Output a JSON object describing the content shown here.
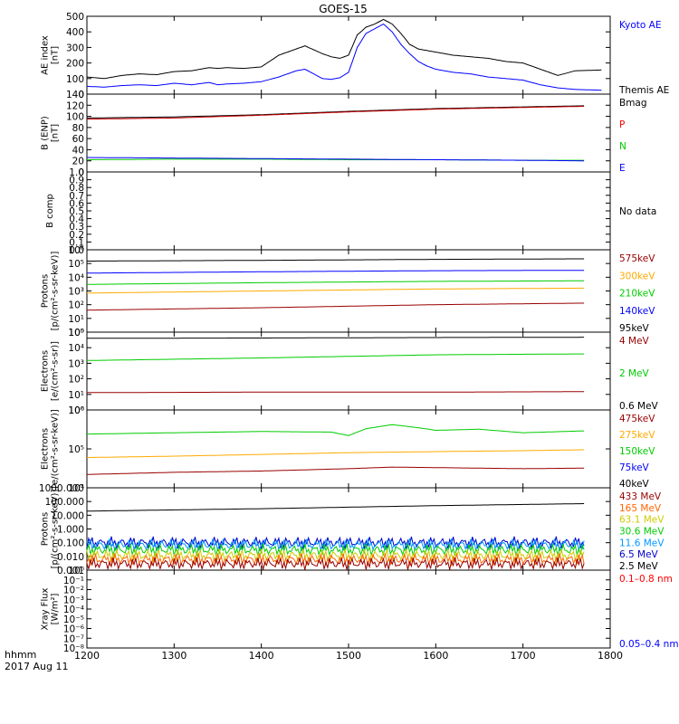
{
  "title": "GOES-15",
  "footer": {
    "time_label": "hhmm",
    "date_label": "2017 Aug 11"
  },
  "x_axis": {
    "range": [
      1200,
      1800
    ],
    "ticks": [
      "1200",
      "1300",
      "1400",
      "1500",
      "1600",
      "1700",
      "1800"
    ]
  },
  "chart_data": [
    {
      "type": "line",
      "panel": "ae",
      "ylabel": [
        "AE index",
        "[nT]"
      ],
      "ylim": [
        0,
        500
      ],
      "yticks": [
        "0",
        "100",
        "200",
        "300",
        "400",
        "500"
      ],
      "series": [
        {
          "name": "Kyoto AE",
          "color": "#0000ff",
          "x": [
            1200,
            1220,
            1240,
            1260,
            1280,
            1300,
            1320,
            1340,
            1350,
            1360,
            1380,
            1400,
            1420,
            1440,
            1450,
            1460,
            1470,
            1480,
            1490,
            1500,
            1510,
            1520,
            1530,
            1540,
            1550,
            1560,
            1570,
            1580,
            1590,
            1600,
            1620,
            1640,
            1660,
            1680,
            1700,
            1720,
            1740,
            1760,
            1790
          ],
          "y": [
            50,
            45,
            55,
            60,
            55,
            70,
            60,
            75,
            60,
            65,
            70,
            80,
            110,
            150,
            160,
            130,
            100,
            95,
            105,
            140,
            300,
            390,
            420,
            450,
            400,
            320,
            260,
            210,
            180,
            160,
            140,
            130,
            110,
            100,
            90,
            60,
            40,
            30,
            25
          ]
        },
        {
          "name": "Themis AE",
          "color": "#000000",
          "x": [
            1200,
            1220,
            1240,
            1260,
            1280,
            1300,
            1320,
            1340,
            1350,
            1360,
            1380,
            1400,
            1420,
            1440,
            1450,
            1460,
            1470,
            1480,
            1490,
            1500,
            1510,
            1520,
            1530,
            1540,
            1550,
            1560,
            1570,
            1580,
            1590,
            1600,
            1620,
            1640,
            1660,
            1680,
            1700,
            1720,
            1740,
            1760,
            1790
          ],
          "y": [
            110,
            100,
            120,
            130,
            125,
            145,
            150,
            170,
            165,
            170,
            165,
            175,
            250,
            290,
            310,
            285,
            260,
            240,
            230,
            250,
            380,
            430,
            450,
            480,
            450,
            390,
            320,
            290,
            280,
            270,
            250,
            240,
            230,
            210,
            200,
            160,
            120,
            150,
            155
          ]
        }
      ],
      "legend": [
        {
          "text": "Kyoto AE",
          "color": "#0000ff"
        },
        {
          "text": "Themis AE",
          "color": "#000000"
        }
      ]
    },
    {
      "type": "line",
      "panel": "bfield",
      "ylabel": [
        "B (ENP)",
        "[nT]"
      ],
      "ylim": [
        0,
        140
      ],
      "yticks": [
        "0",
        "20",
        "40",
        "60",
        "80",
        "100",
        "120",
        "140"
      ],
      "series": [
        {
          "name": "Bmag",
          "color": "#000000",
          "x": [
            1200,
            1300,
            1400,
            1500,
            1600,
            1700,
            1770
          ],
          "y": [
            97,
            99,
            103,
            109,
            114,
            117,
            119
          ]
        },
        {
          "name": "P",
          "color": "#cc0000",
          "x": [
            1200,
            1300,
            1400,
            1500,
            1600,
            1700,
            1770
          ],
          "y": [
            95,
            97,
            102,
            108,
            113,
            116,
            118
          ]
        },
        {
          "name": "N",
          "color": "#00cc00",
          "x": [
            1200,
            1300,
            1400,
            1500,
            1600,
            1700,
            1770
          ],
          "y": [
            22,
            23,
            23,
            22,
            22,
            21,
            21
          ]
        },
        {
          "name": "E",
          "color": "#0000ff",
          "x": [
            1200,
            1300,
            1400,
            1500,
            1600,
            1700,
            1770
          ],
          "y": [
            26,
            25,
            24,
            23,
            22,
            21,
            20
          ]
        }
      ],
      "legend": [
        {
          "text": "Bmag",
          "color": "#000000"
        },
        {
          "text": "P",
          "color": "#ff0000"
        },
        {
          "text": "N",
          "color": "#00cc00"
        },
        {
          "text": "E",
          "color": "#0000ff"
        }
      ]
    },
    {
      "type": "line",
      "panel": "bcomp",
      "ylabel": [
        "B comp"
      ],
      "ylim": [
        0,
        1
      ],
      "yticks": [
        "0.0",
        "0.1",
        "0.2",
        "0.3",
        "0.4",
        "0.5",
        "0.6",
        "0.7",
        "0.8",
        "0.9",
        "1.0"
      ],
      "series": [],
      "legend": [
        {
          "text": "No data",
          "color": "#000000"
        }
      ]
    },
    {
      "type": "line",
      "panel": "protons",
      "yscale": "log",
      "ylabel": [
        "Protons",
        "[p/(cm²-s-sr-keV)]"
      ],
      "ylim": [
        1,
        1000000
      ],
      "yticks": [
        "10⁰",
        "10¹",
        "10²",
        "10³",
        "10⁴",
        "10⁵",
        "10⁶"
      ],
      "series": [
        {
          "name": "95keV",
          "color": "#000000",
          "x": [
            1200,
            1400,
            1600,
            1770
          ],
          "y": [
            150000,
            170000,
            200000,
            220000
          ]
        },
        {
          "name": "140keV",
          "color": "#0000ff",
          "x": [
            1200,
            1400,
            1600,
            1770
          ],
          "y": [
            20000,
            25000,
            30000,
            32000
          ]
        },
        {
          "name": "210keV",
          "color": "#00cc00",
          "x": [
            1200,
            1400,
            1600,
            1770
          ],
          "y": [
            3000,
            4000,
            5000,
            5500
          ]
        },
        {
          "name": "300keV",
          "color": "#ffaa00",
          "x": [
            1200,
            1400,
            1600,
            1770
          ],
          "y": [
            700,
            1000,
            1400,
            1600
          ]
        },
        {
          "name": "575keV",
          "color": "#990000",
          "x": [
            1200,
            1400,
            1600,
            1770
          ],
          "y": [
            40,
            60,
            100,
            130
          ]
        }
      ],
      "legend": [
        {
          "text": "575keV",
          "color": "#990000"
        },
        {
          "text": "300keV",
          "color": "#ffaa00"
        },
        {
          "text": "210keV",
          "color": "#00cc00"
        },
        {
          "text": "140keV",
          "color": "#0000ff"
        },
        {
          "text": "95keV",
          "color": "#000000"
        }
      ]
    },
    {
      "type": "line",
      "panel": "electrons_mev",
      "yscale": "log",
      "ylabel": [
        "Electrons",
        "[e/(cm²-s-sr)]"
      ],
      "ylim": [
        1,
        100000
      ],
      "yticks": [
        "10⁰",
        "10¹",
        "10²",
        "10³",
        "10⁴",
        "10⁵"
      ],
      "series": [
        {
          "name": "0.6 MeV",
          "color": "#000000",
          "x": [
            1200,
            1400,
            1600,
            1770
          ],
          "y": [
            40000,
            42000,
            45000,
            47000
          ]
        },
        {
          "name": "2 MeV",
          "color": "#00cc00",
          "x": [
            1200,
            1400,
            1600,
            1770
          ],
          "y": [
            1500,
            2200,
            3500,
            4000
          ]
        },
        {
          "name": "4 MeV",
          "color": "#990000",
          "x": [
            1200,
            1400,
            1600,
            1770
          ],
          "y": [
            13,
            14,
            14,
            15
          ]
        }
      ],
      "legend": [
        {
          "text": "4 MeV",
          "color": "#990000"
        },
        {
          "text": "2 MeV",
          "color": "#00cc00"
        },
        {
          "text": "0.6 MeV",
          "color": "#000000"
        }
      ]
    },
    {
      "type": "line",
      "panel": "electrons_kev",
      "yscale": "log",
      "ylabel": [
        "Electrons",
        "[e/(cm²-s-sr-keV)]"
      ],
      "ylim": [
        10000,
        1000000
      ],
      "yticks": [
        "10⁴",
        "10⁵",
        "10⁶"
      ],
      "series": [
        {
          "name": "150keV",
          "color": "#00cc00",
          "x": [
            1200,
            1300,
            1400,
            1480,
            1500,
            1520,
            1550,
            1580,
            1600,
            1650,
            1700,
            1770
          ],
          "y": [
            240000,
            260000,
            280000,
            270000,
            220000,
            330000,
            420000,
            350000,
            300000,
            320000,
            260000,
            290000
          ]
        },
        {
          "name": "275keV",
          "color": "#ffaa00",
          "x": [
            1200,
            1300,
            1400,
            1500,
            1600,
            1700,
            1770
          ],
          "y": [
            60000,
            65000,
            72000,
            80000,
            85000,
            90000,
            95000
          ]
        },
        {
          "name": "475keV",
          "color": "#990000",
          "x": [
            1200,
            1300,
            1400,
            1500,
            1550,
            1600,
            1700,
            1770
          ],
          "y": [
            22000,
            25000,
            27000,
            31000,
            34000,
            33000,
            31000,
            32000
          ]
        }
      ],
      "legend": [
        {
          "text": "475keV",
          "color": "#990000"
        },
        {
          "text": "275keV",
          "color": "#ffaa00"
        },
        {
          "text": "150keV",
          "color": "#00cc00"
        },
        {
          "text": "75keV",
          "color": "#0000ff"
        },
        {
          "text": "40keV",
          "color": "#000000"
        }
      ]
    },
    {
      "type": "line",
      "panel": "protons_mev",
      "yscale": "log",
      "ylabel": [
        "Protons",
        "[p/(cm²-s-sr-keV)]"
      ],
      "ylim": [
        0.001,
        1000
      ],
      "yticks": [
        "0.001",
        "0.010",
        "0.100",
        "1.000",
        "10.000",
        "100.000",
        "1000.000"
      ],
      "series": [
        {
          "name": "2.5 MeV",
          "color": "#000000",
          "x": [
            1200,
            1400,
            1600,
            1770
          ],
          "y": [
            20,
            30,
            50,
            70
          ]
        },
        {
          "name": "6.5 MeV",
          "color": "#0000cc",
          "x": [
            1200,
            1770
          ],
          "y": [
            0.1,
            0.1
          ],
          "noisy": true
        },
        {
          "name": "11.6 MeV",
          "color": "#0099ff",
          "x": [
            1200,
            1770
          ],
          "y": [
            0.07,
            0.07
          ],
          "noisy": true
        },
        {
          "name": "30.6 MeV",
          "color": "#00cc00",
          "x": [
            1200,
            1770
          ],
          "y": [
            0.03,
            0.03
          ],
          "noisy": true
        },
        {
          "name": "63.1 MeV",
          "color": "#cccc00",
          "x": [
            1200,
            1770
          ],
          "y": [
            0.012,
            0.012
          ],
          "noisy": true
        },
        {
          "name": "165 MeV",
          "color": "#ff6600",
          "x": [
            1200,
            1770
          ],
          "y": [
            0.006,
            0.006
          ],
          "noisy": true
        },
        {
          "name": "433 MeV",
          "color": "#990000",
          "x": [
            1200,
            1770
          ],
          "y": [
            0.003,
            0.003
          ],
          "noisy": true
        }
      ],
      "legend": [
        {
          "text": "433 MeV",
          "color": "#990000"
        },
        {
          "text": "165 MeV",
          "color": "#ff6600"
        },
        {
          "text": "63.1 MeV",
          "color": "#cccc00"
        },
        {
          "text": "30.6 MeV",
          "color": "#00cc00"
        },
        {
          "text": "11.6 MeV",
          "color": "#0099ff"
        },
        {
          "text": "6.5 MeV",
          "color": "#0000cc"
        },
        {
          "text": "2.5 MeV",
          "color": "#000000"
        }
      ]
    },
    {
      "type": "line",
      "panel": "xray",
      "yscale": "log",
      "ylabel": [
        "Xray Flux",
        "[W/m²]"
      ],
      "ylim": [
        1e-08,
        1
      ],
      "yticks": [
        "10⁻⁸",
        "10⁻⁷",
        "10⁻⁶",
        "10⁻⁵",
        "10⁻⁴",
        "10⁻³",
        "10⁻²",
        "10⁻¹",
        "10⁰"
      ],
      "series": [],
      "legend": [
        {
          "text": "0.1–0.8 nm",
          "color": "#ff0000"
        },
        {
          "text": "0.05–0.4 nm",
          "color": "#0000ff"
        }
      ]
    }
  ]
}
